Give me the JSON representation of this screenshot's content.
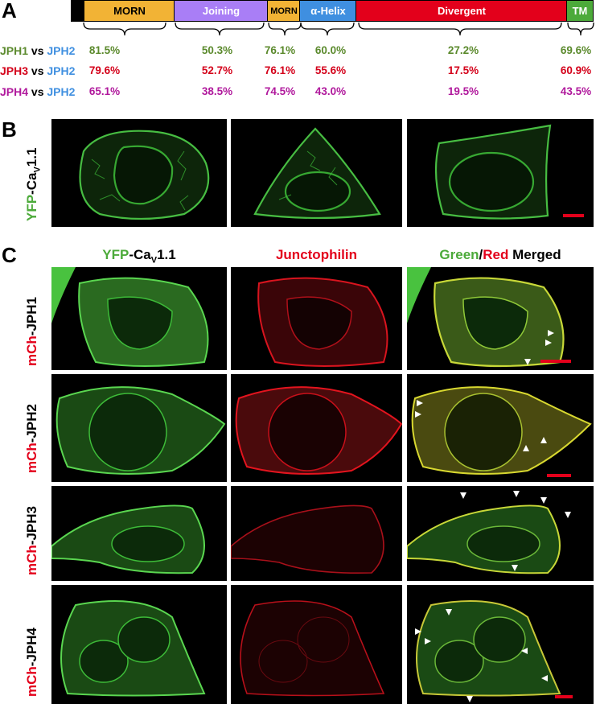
{
  "panel_a": {
    "letter": "A",
    "domains": [
      {
        "label": "",
        "color": "#000000"
      },
      {
        "label": "MORN",
        "color": "#f2b335"
      },
      {
        "label": "Joining",
        "color": "#a97ef6"
      },
      {
        "label": "MORN",
        "color": "#f2b335"
      },
      {
        "label": "α-Helix",
        "color": "#3f8fe0"
      },
      {
        "label": "Divergent",
        "color": "#e3001b"
      },
      {
        "label": "TM",
        "color": "#4caa3a"
      }
    ],
    "comparisons": [
      {
        "left": "JPH1",
        "vs": "vs",
        "right": "JPH2",
        "left_color": "#5b8a2d",
        "color": "#5b8a2d",
        "values": [
          "81.5%",
          "50.3%",
          "76.1%",
          "60.0%",
          "27.2%",
          "69.6%"
        ]
      },
      {
        "left": "JPH3",
        "vs": "vs",
        "right": "JPH2",
        "left_color": "#d4001a",
        "color": "#d4001a",
        "values": [
          "79.6%",
          "52.7%",
          "76.1%",
          "55.6%",
          "17.5%",
          "60.9%"
        ]
      },
      {
        "left": "JPH4",
        "vs": "vs",
        "right": "JPH2",
        "left_color": "#b0189c",
        "color": "#b0189c",
        "values": [
          "65.1%",
          "38.5%",
          "74.5%",
          "43.0%",
          "19.5%",
          "43.5%"
        ]
      }
    ],
    "jph2_color": "#3f8fe0"
  },
  "panel_b": {
    "letter": "B",
    "label_prefix": "YFP",
    "label_suffix": "-Ca",
    "label_sub": "V",
    "label_end": "1.1"
  },
  "panel_c": {
    "letter": "C",
    "col_heads": {
      "c1_green": "YFP",
      "c1_black": "-Ca",
      "c1_sub": "V",
      "c1_end": "1.1",
      "c2": "Junctophilin",
      "c3_green": "Green",
      "c3_slash": "/",
      "c3_red": "Red",
      "c3_end": " Merged"
    },
    "rows": [
      {
        "prefix": "mCh",
        "suffix": "-JPH1"
      },
      {
        "prefix": "mCh",
        "suffix": "-JPH2"
      },
      {
        "prefix": "mCh",
        "suffix": "-JPH3"
      },
      {
        "prefix": "mCh",
        "suffix": "-JPH4"
      }
    ]
  },
  "colors": {
    "green": "#4caa3a",
    "red": "#e3001b",
    "black": "#000000"
  }
}
